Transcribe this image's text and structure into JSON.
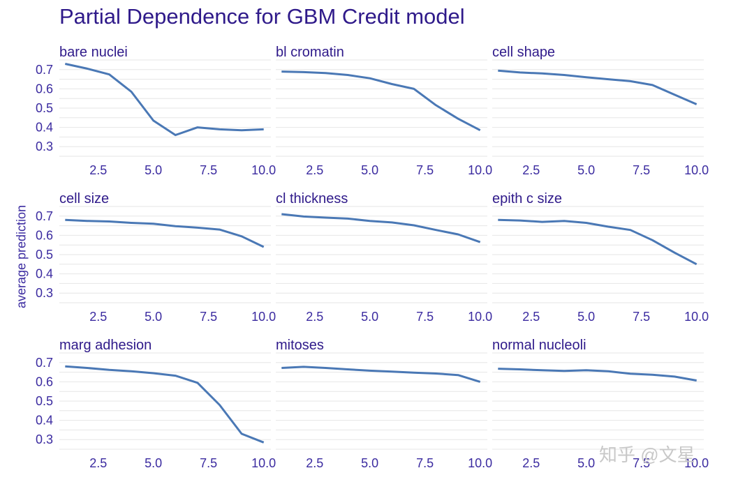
{
  "chart_data": {
    "type": "line",
    "title": "Partial Dependence for GBM Credit model",
    "ylabel": "average prediction",
    "xlabel": "",
    "xlim": [
      0.8,
      10.2
    ],
    "ylim": [
      0.25,
      0.75
    ],
    "x_ticks": [
      "2.5",
      "5.0",
      "7.5",
      "10.0"
    ],
    "y_ticks": [
      "0.7",
      "0.6",
      "0.5",
      "0.4",
      "0.3"
    ],
    "color": "#4a78b5",
    "panels": [
      {
        "name": "bare_nuclei_plot",
        "label": "bare  nuclei",
        "x": [
          1,
          2,
          3,
          4,
          5,
          6,
          7,
          8,
          9,
          10
        ],
        "y": [
          0.73,
          0.705,
          0.675,
          0.585,
          0.435,
          0.36,
          0.4,
          0.39,
          0.385,
          0.39
        ]
      },
      {
        "name": "bl_cromatin_plot",
        "label": "bl  cromatin",
        "x": [
          1,
          2,
          3,
          4,
          5,
          6,
          7,
          8,
          9,
          10
        ],
        "y": [
          0.69,
          0.687,
          0.682,
          0.672,
          0.655,
          0.625,
          0.6,
          0.515,
          0.445,
          0.385
        ]
      },
      {
        "name": "cell_shape_plot",
        "label": "cell  shape",
        "x": [
          1,
          2,
          3,
          4,
          5,
          6,
          7,
          8,
          9,
          10
        ],
        "y": [
          0.695,
          0.685,
          0.68,
          0.672,
          0.66,
          0.65,
          0.64,
          0.62,
          0.57,
          0.52
        ]
      },
      {
        "name": "cell_size_plot",
        "label": "cell  size",
        "x": [
          1,
          2,
          3,
          4,
          5,
          6,
          7,
          8,
          9,
          10
        ],
        "y": [
          0.68,
          0.675,
          0.672,
          0.665,
          0.66,
          0.648,
          0.64,
          0.63,
          0.595,
          0.54
        ]
      },
      {
        "name": "cl_thickness_plot",
        "label": "cl  thickness",
        "x": [
          1,
          2,
          3,
          4,
          5,
          6,
          7,
          8,
          9,
          10
        ],
        "y": [
          0.71,
          0.698,
          0.692,
          0.687,
          0.675,
          0.667,
          0.652,
          0.628,
          0.605,
          0.565
        ]
      },
      {
        "name": "epith_c_size_plot",
        "label": "epith  c  size",
        "x": [
          1,
          2,
          3,
          4,
          5,
          6,
          7,
          8,
          9,
          10
        ],
        "y": [
          0.68,
          0.677,
          0.67,
          0.675,
          0.665,
          0.645,
          0.628,
          0.575,
          0.51,
          0.45
        ]
      },
      {
        "name": "marg_adhesion_plot",
        "label": "marg  adhesion",
        "x": [
          1,
          2,
          3,
          4,
          5,
          6,
          7,
          8,
          9,
          10
        ],
        "y": [
          0.68,
          0.672,
          0.662,
          0.655,
          0.645,
          0.632,
          0.595,
          0.48,
          0.33,
          0.285
        ]
      },
      {
        "name": "mitoses_plot",
        "label": "mitoses",
        "x": [
          1,
          2,
          3,
          4,
          5,
          6,
          7,
          8,
          9,
          10
        ],
        "y": [
          0.672,
          0.678,
          0.672,
          0.665,
          0.658,
          0.653,
          0.648,
          0.643,
          0.635,
          0.6
        ]
      },
      {
        "name": "normal_nucleoli_plot",
        "label": "normal  nucleoli",
        "x": [
          1,
          2,
          3,
          4,
          5,
          6,
          7,
          8,
          9,
          10
        ],
        "y": [
          0.668,
          0.665,
          0.66,
          0.657,
          0.66,
          0.655,
          0.642,
          0.637,
          0.627,
          0.607
        ]
      }
    ]
  },
  "watermark": "知乎 @文星"
}
